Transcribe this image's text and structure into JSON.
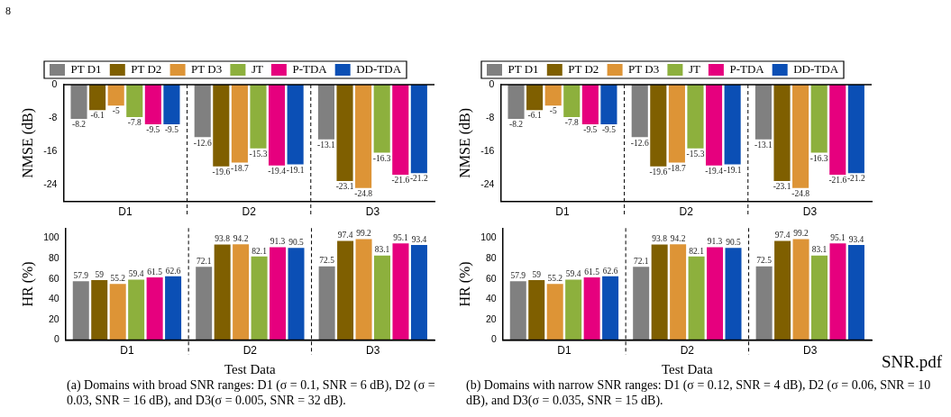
{
  "chart_data": [
    {
      "type": "bar",
      "ylabel": "NMSE (dB)",
      "categories": [
        "D1",
        "D2",
        "D3"
      ],
      "ylim": [
        -28,
        0
      ],
      "yticks": [
        -24,
        -16,
        -8,
        0
      ],
      "legend": "top",
      "data_labels": true,
      "annotations": [
        "8"
      ],
      "series": [
        {
          "name": "PT D1",
          "color": "#808080",
          "values": [
            -8.2,
            -12.6,
            -13.1
          ]
        },
        {
          "name": "PT D2",
          "color": "#7f5f00",
          "values": [
            -6.1,
            -19.6,
            -23.1
          ]
        },
        {
          "name": "PT D3",
          "color": "#dd9436",
          "values": [
            -5,
            -18.7,
            -24.8
          ]
        },
        {
          "name": "JT",
          "color": "#8db03d",
          "values": [
            -7.8,
            -15.3,
            -16.3
          ]
        },
        {
          "name": "P-TDA",
          "color": "#e6007e",
          "values": [
            -9.5,
            -19.4,
            -21.6
          ]
        },
        {
          "name": "DD-TDA",
          "color": "#0b4fb5",
          "values": [
            -9.5,
            -19.1,
            -21.2
          ]
        }
      ]
    },
    {
      "type": "bar",
      "ylabel": "HR (%)",
      "xlabel": "Test Data",
      "categories": [
        "D1",
        "D2",
        "D3"
      ],
      "ylim": [
        0,
        110
      ],
      "yticks": [
        0,
        20,
        40,
        60,
        80,
        100
      ],
      "data_labels": true,
      "annotations": [
        "(a) Domains with broad SNR ranges: D1 (σ = 0.1, SNR = 6 dB), D2 (σ = 0.03, SNR = 16 dB), and D3(σ = 0.005, SNR = 32 dB)."
      ],
      "series": [
        {
          "color": "#808080",
          "values": [
            57.9,
            72.1,
            72.5
          ]
        },
        {
          "color": "#7f5f00",
          "values": [
            59,
            93.8,
            97.4
          ]
        },
        {
          "color": "#dd9436",
          "values": [
            55.2,
            94.2,
            99.2
          ]
        },
        {
          "color": "#8db03d",
          "values": [
            59.4,
            82.1,
            83.1
          ]
        },
        {
          "color": "#e6007e",
          "values": [
            61.5,
            91.3,
            95.1
          ]
        },
        {
          "color": "#0b4fb5",
          "values": [
            62.6,
            90.5,
            93.4
          ]
        }
      ]
    },
    {
      "type": "bar",
      "ylabel": "NMSE (dB)",
      "categories": [
        "D1",
        "D2",
        "D3"
      ],
      "ylim": [
        -28,
        0
      ],
      "yticks": [
        -24,
        -16,
        -8,
        0
      ],
      "legend": "top",
      "data_labels": true,
      "series": [
        {
          "name": "PT D1",
          "color": "#808080",
          "values": [
            -8.2,
            -12.6,
            -13.1
          ]
        },
        {
          "name": "PT D2",
          "color": "#7f5f00",
          "values": [
            -6.1,
            -19.6,
            -23.1
          ]
        },
        {
          "name": "PT D3",
          "color": "#dd9436",
          "values": [
            -5,
            -18.7,
            -24.8
          ]
        },
        {
          "name": "JT",
          "color": "#8db03d",
          "values": [
            -7.8,
            -15.3,
            -16.3
          ]
        },
        {
          "name": "P-TDA",
          "color": "#e6007e",
          "values": [
            -9.5,
            -19.4,
            -21.6
          ]
        },
        {
          "name": "DD-TDA",
          "color": "#0b4fb5",
          "values": [
            -9.5,
            -19.1,
            -21.2
          ]
        }
      ]
    },
    {
      "type": "bar",
      "ylabel": "HR (%)",
      "xlabel": "Test Data",
      "categories": [
        "D1",
        "D2",
        "D3"
      ],
      "ylim": [
        0,
        110
      ],
      "yticks": [
        0,
        20,
        40,
        60,
        80,
        100
      ],
      "data_labels": true,
      "annotations": [
        "(b) Domains with narrow SNR ranges: D1 (σ = 0.12, SNR = 4 dB), D2 (σ = 0.06, SNR = 10 dB), and D3(σ = 0.035, SNR = 15 dB).",
        "SNR.pdf"
      ],
      "series": [
        {
          "color": "#808080",
          "values": [
            57.9,
            72.1,
            72.5
          ]
        },
        {
          "color": "#7f5f00",
          "values": [
            59,
            93.8,
            97.4
          ]
        },
        {
          "color": "#dd9436",
          "values": [
            55.2,
            94.2,
            99.2
          ]
        },
        {
          "color": "#8db03d",
          "values": [
            59.4,
            82.1,
            83.1
          ]
        },
        {
          "color": "#e6007e",
          "values": [
            61.5,
            91.3,
            95.1
          ]
        },
        {
          "color": "#0b4fb5",
          "values": [
            62.6,
            90.5,
            93.4
          ]
        }
      ]
    }
  ]
}
